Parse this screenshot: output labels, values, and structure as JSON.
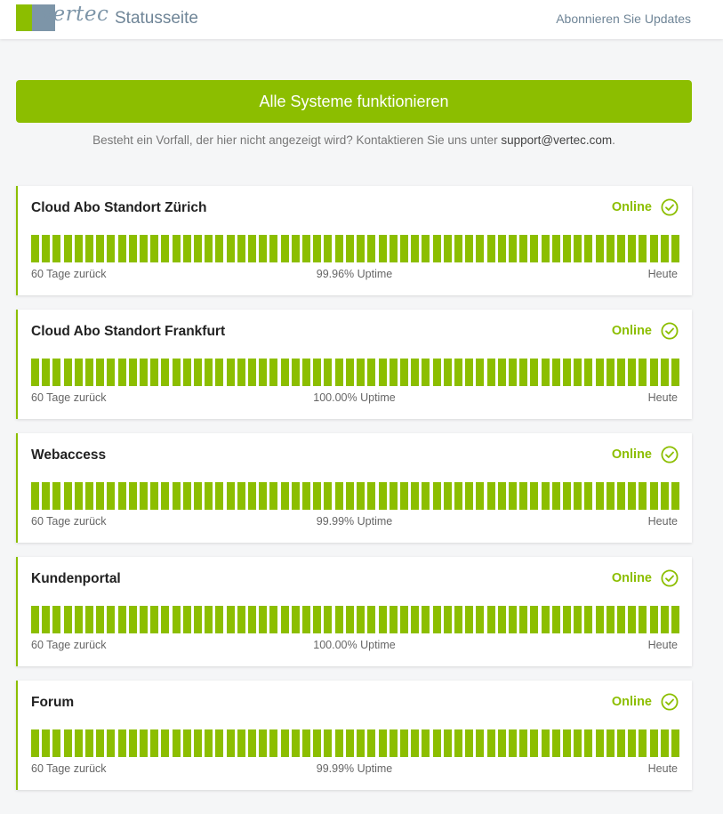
{
  "header": {
    "logo_text": "vertec",
    "title": "Statusseite",
    "subscribe_label": "Abonnieren Sie Updates"
  },
  "banner": {
    "text": "Alle Systeme funktionieren"
  },
  "contact": {
    "text": "Besteht ein Vorfall, der hier nicht angezeigt wird? Kontaktieren Sie uns unter",
    "email": "support@vertec.com",
    "suffix": "."
  },
  "colors": {
    "accent": "#8cbe00",
    "brand_gray": "#7d95a8"
  },
  "components": [
    {
      "name": "Cloud Abo Standort Zürich",
      "status": "Online",
      "status_icon": "check-circle-icon",
      "bars_count": 60,
      "left_label": "60 Tage zurück",
      "uptime": "99.96% Uptime",
      "right_label": "Heute"
    },
    {
      "name": "Cloud Abo Standort Frankfurt",
      "status": "Online",
      "status_icon": "check-circle-icon",
      "bars_count": 60,
      "left_label": "60 Tage zurück",
      "uptime": "100.00% Uptime",
      "right_label": "Heute"
    },
    {
      "name": "Webaccess",
      "status": "Online",
      "status_icon": "check-circle-icon",
      "bars_count": 60,
      "left_label": "60 Tage zurück",
      "uptime": "99.99% Uptime",
      "right_label": "Heute"
    },
    {
      "name": "Kundenportal",
      "status": "Online",
      "status_icon": "check-circle-icon",
      "bars_count": 60,
      "left_label": "60 Tage zurück",
      "uptime": "100.00% Uptime",
      "right_label": "Heute"
    },
    {
      "name": "Forum",
      "status": "Online",
      "status_icon": "check-circle-icon",
      "bars_count": 60,
      "left_label": "60 Tage zurück",
      "uptime": "99.99% Uptime",
      "right_label": "Heute"
    }
  ]
}
